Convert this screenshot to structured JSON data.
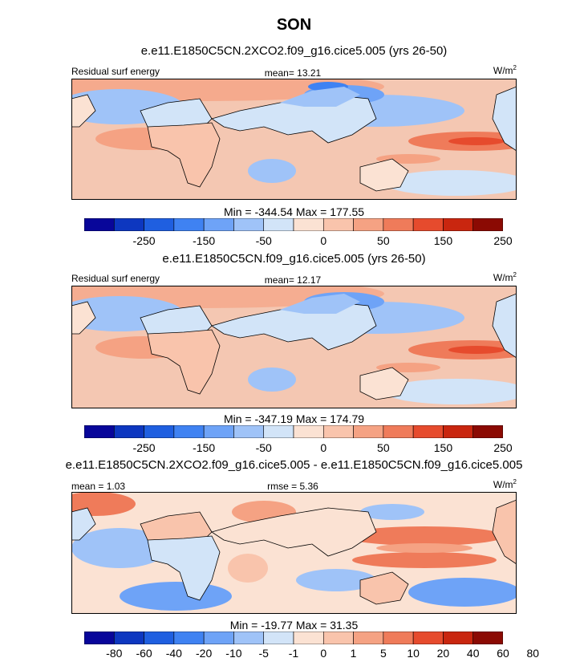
{
  "title": "SON",
  "panels": [
    {
      "case_title": "e.e11.E1850C5CN.2XCO2.f09_g16.cice5.005 (yrs 26-50)",
      "left_label": "Residual surf energy",
      "center_label": "mean=  13.21",
      "units": "W/m",
      "units_exp": "2",
      "minmax": "Min = -344.54 Max = 177.55",
      "colorbar_labels": [
        "-250",
        "-150",
        "-50",
        "0",
        "50",
        "150",
        "250"
      ]
    },
    {
      "case_title": "e.e11.E1850C5CN.f09_g16.cice5.005 (yrs 26-50)",
      "left_label": "Residual surf energy",
      "center_label": "mean=  12.17",
      "units": "W/m",
      "units_exp": "2",
      "minmax": "Min = -347.19 Max = 174.79",
      "colorbar_labels": [
        "-250",
        "-150",
        "-50",
        "0",
        "50",
        "150",
        "250"
      ]
    },
    {
      "case_title": "e.e11.E1850C5CN.2XCO2.f09_g16.cice5.005 - e.e11.E1850C5CN.f09_g16.cice5.005",
      "left_label": "mean =   1.03",
      "center_label": "rmse =   5.36",
      "units": "W/m",
      "units_exp": "2",
      "minmax": "Min = -19.77 Max = 31.35",
      "colorbar_labels": [
        "-80",
        "-60",
        "-40",
        "-20",
        "-10",
        "-5",
        "-1",
        "0",
        "1",
        "5",
        "10",
        "20",
        "40",
        "60",
        "80"
      ]
    }
  ],
  "colors": {
    "palette": [
      "#08069a",
      "#0d37c0",
      "#1f5fe0",
      "#3f82f2",
      "#6ea3f7",
      "#9fc3f8",
      "#d2e4f8",
      "#fbe2d3",
      "#f9c4ac",
      "#f5a283",
      "#ef7b5a",
      "#e64b2d",
      "#c9260f",
      "#8b0a03"
    ],
    "land": "#ffffff",
    "coast": "#000000"
  }
}
